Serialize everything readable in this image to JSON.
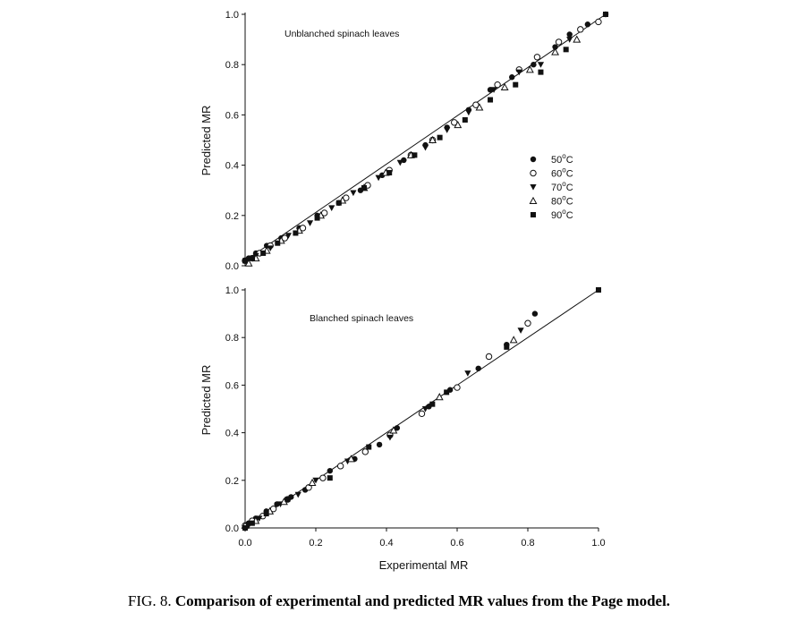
{
  "caption": {
    "prefix": "FIG. 8.",
    "text": "Comparison of experimental and predicted MR values from the Page model."
  },
  "legend": {
    "entries": [
      {
        "label_pre": "50",
        "label_sup": "o",
        "label_post": "C",
        "marker": "filled-circle"
      },
      {
        "label_pre": "60",
        "label_sup": "o",
        "label_post": "C",
        "marker": "open-circle"
      },
      {
        "label_pre": "70",
        "label_sup": "o",
        "label_post": "C",
        "marker": "filled-triangle-down"
      },
      {
        "label_pre": "80",
        "label_sup": "o",
        "label_post": "C",
        "marker": "open-triangle-up"
      },
      {
        "label_pre": "90",
        "label_sup": "o",
        "label_post": "C",
        "marker": "filled-square"
      }
    ]
  },
  "colors": {
    "ink": "#111111",
    "background": "#ffffff"
  },
  "chart_data": [
    {
      "type": "scatter",
      "annotation": "Unblanched spinach leaves",
      "xlabel": "",
      "ylabel": "Predicted MR",
      "xlim": [
        0,
        1.0
      ],
      "ylim": [
        0,
        1.0
      ],
      "x_ticks_visible": false,
      "yticks": [
        "0.0",
        "0.2",
        "0.4",
        "0.6",
        "0.8",
        "1.0"
      ],
      "fit_line": [
        [
          0,
          0.02
        ],
        [
          1.0,
          1.0
        ]
      ],
      "series": [
        {
          "temperature": "50",
          "marker": "filled-circle",
          "x": [
            0.0,
            0.01,
            0.03,
            0.06,
            0.1,
            0.15,
            0.2,
            0.26,
            0.32,
            0.38,
            0.44,
            0.5,
            0.56,
            0.62,
            0.68,
            0.74,
            0.8,
            0.86,
            0.9,
            0.95,
            1.0
          ],
          "y": [
            0.02,
            0.03,
            0.05,
            0.08,
            0.11,
            0.15,
            0.2,
            0.25,
            0.3,
            0.36,
            0.42,
            0.48,
            0.55,
            0.62,
            0.7,
            0.75,
            0.8,
            0.87,
            0.92,
            0.96,
            1.0
          ]
        },
        {
          "temperature": "60",
          "marker": "open-circle",
          "x": [
            0.0,
            0.02,
            0.04,
            0.07,
            0.11,
            0.16,
            0.22,
            0.28,
            0.34,
            0.4,
            0.46,
            0.52,
            0.58,
            0.64,
            0.7,
            0.76,
            0.81,
            0.87,
            0.93,
            0.98
          ],
          "y": [
            0.02,
            0.03,
            0.05,
            0.08,
            0.11,
            0.15,
            0.21,
            0.27,
            0.32,
            0.38,
            0.44,
            0.5,
            0.57,
            0.64,
            0.72,
            0.78,
            0.83,
            0.89,
            0.94,
            0.97
          ]
        },
        {
          "temperature": "70",
          "marker": "filled-triangle-down",
          "x": [
            0.01,
            0.03,
            0.07,
            0.12,
            0.18,
            0.24,
            0.3,
            0.37,
            0.43,
            0.5,
            0.56,
            0.62,
            0.69,
            0.76,
            0.82,
            0.9
          ],
          "y": [
            0.02,
            0.04,
            0.07,
            0.12,
            0.17,
            0.23,
            0.29,
            0.35,
            0.41,
            0.47,
            0.54,
            0.61,
            0.7,
            0.77,
            0.8,
            0.9
          ]
        },
        {
          "temperature": "80",
          "marker": "open-triangle-up",
          "x": [
            0.01,
            0.03,
            0.06,
            0.1,
            0.15,
            0.21,
            0.27,
            0.33,
            0.39,
            0.46,
            0.52,
            0.59,
            0.65,
            0.72,
            0.79,
            0.86,
            0.92
          ],
          "y": [
            0.01,
            0.03,
            0.06,
            0.1,
            0.14,
            0.2,
            0.26,
            0.31,
            0.37,
            0.44,
            0.5,
            0.56,
            0.63,
            0.71,
            0.78,
            0.85,
            0.9
          ]
        },
        {
          "temperature": "90",
          "marker": "filled-square",
          "x": [
            0.0,
            0.02,
            0.05,
            0.09,
            0.14,
            0.2,
            0.26,
            0.33,
            0.4,
            0.47,
            0.54,
            0.61,
            0.68,
            0.75,
            0.82,
            0.89,
            1.0
          ],
          "y": [
            0.02,
            0.03,
            0.05,
            0.09,
            0.13,
            0.19,
            0.25,
            0.31,
            0.37,
            0.44,
            0.51,
            0.58,
            0.66,
            0.72,
            0.77,
            0.86,
            1.0
          ]
        }
      ]
    },
    {
      "type": "scatter",
      "annotation": "Blanched spinach leaves",
      "xlabel": "Experimental MR",
      "ylabel": "Predicted MR",
      "xlim": [
        0,
        1.0
      ],
      "ylim": [
        0,
        1.0
      ],
      "xticks": [
        "0.0",
        "0.2",
        "0.4",
        "0.6",
        "0.8",
        "1.0"
      ],
      "yticks": [
        "0.0",
        "0.2",
        "0.4",
        "0.6",
        "0.8",
        "1.0"
      ],
      "fit_line": [
        [
          0,
          0.0
        ],
        [
          1.0,
          1.0
        ]
      ],
      "series": [
        {
          "temperature": "50",
          "marker": "filled-circle",
          "x": [
            0.0,
            0.01,
            0.03,
            0.06,
            0.09,
            0.13,
            0.17,
            0.24,
            0.31,
            0.38,
            0.43,
            0.52,
            0.58,
            0.66,
            0.74,
            0.82
          ],
          "y": [
            0.0,
            0.02,
            0.04,
            0.07,
            0.1,
            0.13,
            0.16,
            0.24,
            0.29,
            0.35,
            0.42,
            0.51,
            0.58,
            0.67,
            0.77,
            0.9
          ]
        },
        {
          "temperature": "60",
          "marker": "open-circle",
          "x": [
            0.0,
            0.02,
            0.05,
            0.08,
            0.12,
            0.18,
            0.22,
            0.27,
            0.34,
            0.41,
            0.5,
            0.6,
            0.69,
            0.8
          ],
          "y": [
            0.01,
            0.03,
            0.05,
            0.08,
            0.12,
            0.17,
            0.21,
            0.26,
            0.32,
            0.39,
            0.48,
            0.59,
            0.72,
            0.86
          ]
        },
        {
          "temperature": "70",
          "marker": "filled-triangle-down",
          "x": [
            0.01,
            0.04,
            0.1,
            0.15,
            0.2,
            0.29,
            0.41,
            0.51,
            0.63,
            0.78
          ],
          "y": [
            0.01,
            0.04,
            0.1,
            0.14,
            0.2,
            0.28,
            0.38,
            0.5,
            0.65,
            0.83
          ]
        },
        {
          "temperature": "80",
          "marker": "open-triangle-up",
          "x": [
            0.0,
            0.03,
            0.07,
            0.11,
            0.19,
            0.3,
            0.42,
            0.55,
            0.76
          ],
          "y": [
            0.01,
            0.03,
            0.07,
            0.11,
            0.19,
            0.29,
            0.41,
            0.55,
            0.79
          ]
        },
        {
          "temperature": "90",
          "marker": "filled-square",
          "x": [
            0.0,
            0.02,
            0.06,
            0.12,
            0.24,
            0.35,
            0.53,
            0.57,
            0.74,
            1.0
          ],
          "y": [
            0.0,
            0.02,
            0.06,
            0.12,
            0.21,
            0.34,
            0.52,
            0.57,
            0.76,
            1.0
          ]
        }
      ]
    }
  ]
}
